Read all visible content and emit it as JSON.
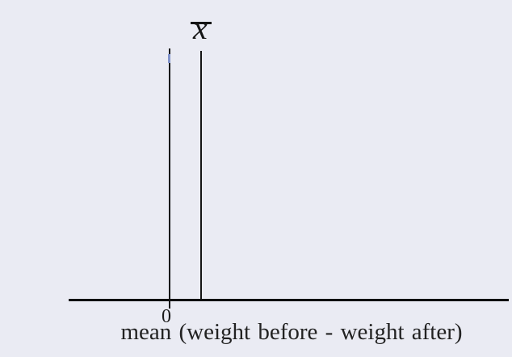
{
  "figure": {
    "background_color": "#eaebf3",
    "ink_color": "#141414",
    "blue_mark_color": "#8294cb",
    "x_bar_symbol": "x",
    "zero_tick_label": "0",
    "x_axis_caption": "mean (weight before - weight after)"
  },
  "chart_data": {
    "type": "line",
    "title": "",
    "xlabel": "mean (weight before - weight after)",
    "ylabel": "",
    "tick_labels": [
      "0"
    ],
    "grid": false,
    "legend": "none",
    "vertical_reference_lines": [
      {
        "name": "zero-line",
        "x": 0,
        "label": "0",
        "extends_through_axis": true
      },
      {
        "name": "x-bar-line",
        "x": 0.1,
        "label": "x̄",
        "note": "sample mean marked slightly right of 0; value not given",
        "extends_through_axis": false
      }
    ],
    "annotations": [
      "x̄ written above the right vertical line",
      "small blue fleck near top of the zero line"
    ]
  }
}
